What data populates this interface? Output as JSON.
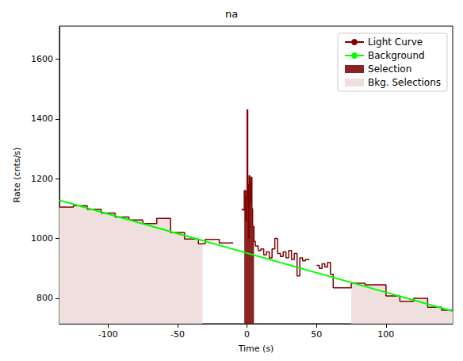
{
  "chart_data": {
    "type": "line",
    "title": "na",
    "x_label": "Time (s)",
    "y_label": "Rate (cnts/s)",
    "xlim": [
      -135,
      148
    ],
    "ylim": [
      715,
      1710
    ],
    "xticks": [
      -100,
      -50,
      0,
      50,
      100
    ],
    "yticks": [
      800,
      1000,
      1200,
      1400,
      1600
    ],
    "grid": false,
    "legend": "upper right",
    "series": [
      {
        "name": "Light Curve",
        "type": "step",
        "color": "#800000",
        "bins": [
          -135,
          -125,
          -115,
          -105,
          -95,
          -85,
          -75,
          -65,
          -55,
          -45,
          -35,
          -30,
          -20,
          -10,
          -4,
          -3,
          -2,
          -1,
          -0.5,
          0,
          0.5,
          1,
          1.5,
          2,
          2.5,
          3,
          3.5,
          4,
          5,
          6,
          8,
          10,
          12,
          14,
          16,
          18,
          20,
          22,
          24,
          26,
          28,
          30,
          32,
          34,
          36,
          38,
          40,
          42,
          45,
          50,
          52,
          54,
          56,
          58,
          60,
          62,
          75,
          85,
          100,
          110,
          120,
          130,
          140,
          148
        ],
        "values": [
          1105,
          1110,
          1098,
          1085,
          1072,
          1062,
          1050,
          1067,
          1020,
          998,
          982,
          997,
          985,
          null,
          1098,
          1095,
          1160,
          1060,
          1140,
          1430,
          1180,
          1000,
          1210,
          1190,
          1120,
          1205,
          1100,
          1040,
          990,
          975,
          960,
          965,
          945,
          955,
          935,
          965,
          1000,
          950,
          940,
          955,
          935,
          960,
          930,
          950,
          875,
          935,
          925,
          930,
          null,
          910,
          900,
          915,
          905,
          920,
          880,
          835,
          850,
          845,
          808,
          790,
          800,
          770,
          760
        ]
      },
      {
        "name": "Background",
        "type": "line",
        "color": "#00ff00",
        "x": [
          -135,
          148
        ],
        "values": [
          1128,
          757
        ]
      },
      {
        "name": "Selection",
        "type": "area",
        "color": "#8b2323",
        "intervals": [
          [
            -2,
            5
          ]
        ]
      },
      {
        "name": "Bkg. Selections",
        "type": "area",
        "color": "#efdfdf",
        "intervals": [
          [
            -135,
            -32
          ],
          [
            75,
            148
          ]
        ]
      }
    ]
  }
}
